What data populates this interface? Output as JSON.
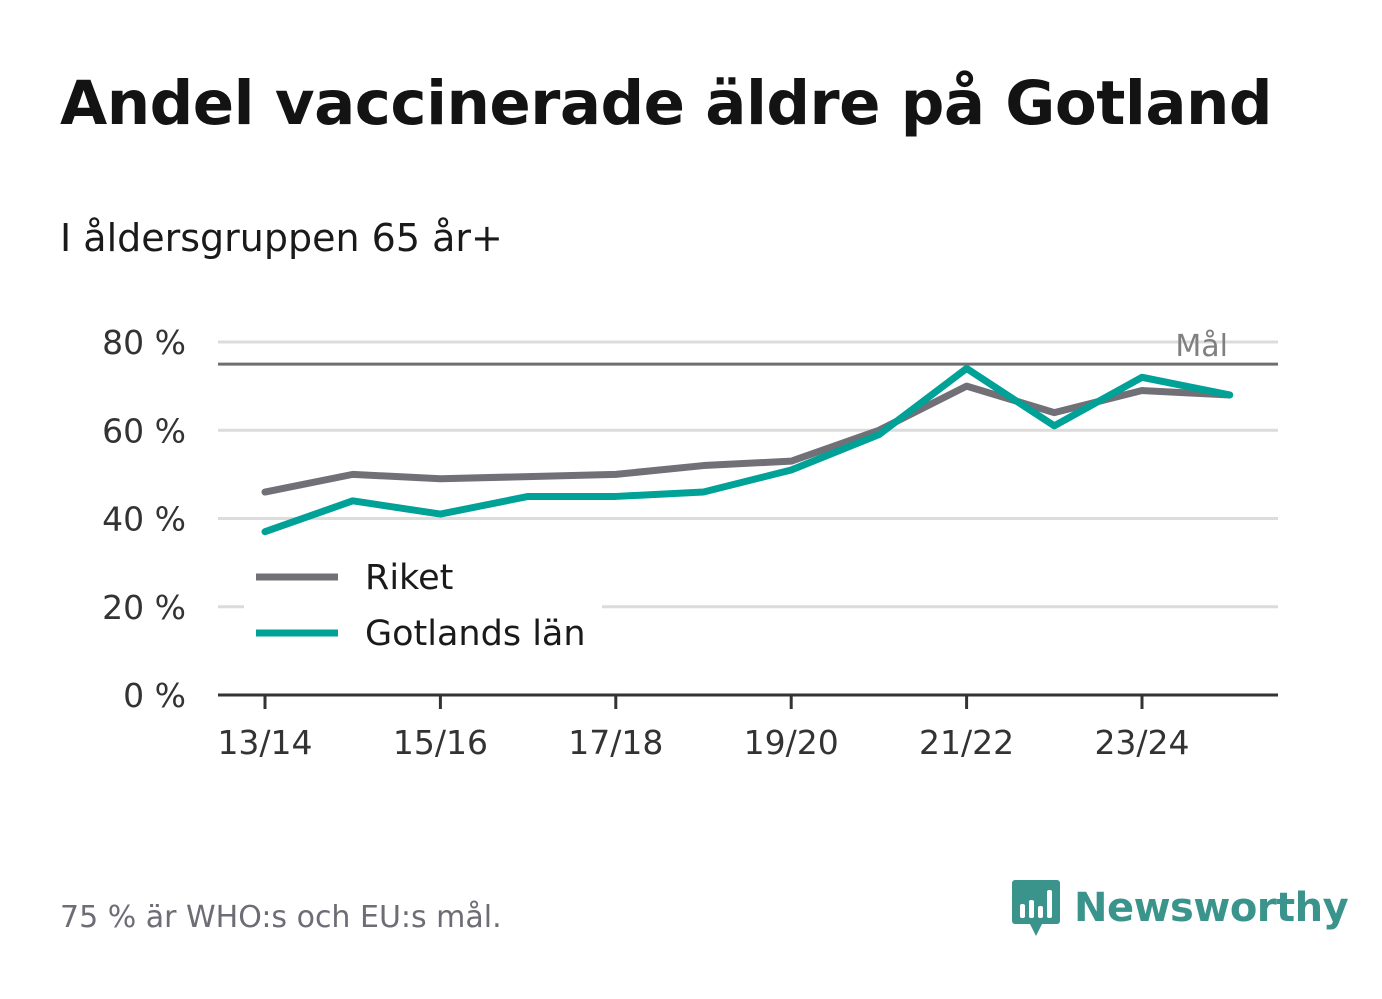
{
  "header": {
    "title": "Andel vaccinerade äldre på Gotland",
    "subtitle": "I åldersgruppen 65 år+"
  },
  "footer": {
    "note": "75 % är WHO:s och EU:s mål.",
    "brand": "Newsworthy"
  },
  "colors": {
    "riket": "#717077",
    "gotland": "#00a197",
    "grid": "#dcdcdc",
    "goal_line": "#6f6f6f",
    "axis": "#333333",
    "brand": "#3a948c"
  },
  "chart_data": {
    "type": "line",
    "title": "Andel vaccinerade äldre på Gotland",
    "subtitle": "I åldersgruppen 65 år+",
    "xlabel": "",
    "ylabel": "",
    "x": [
      "13/14",
      "14/15",
      "15/16",
      "16/17",
      "17/18",
      "18/19",
      "19/20",
      "20/21",
      "21/22",
      "22/23",
      "23/24",
      "24/25"
    ],
    "xtick_labels": [
      "13/14",
      "15/16",
      "17/18",
      "19/20",
      "21/22",
      "23/24"
    ],
    "ylim": [
      0,
      80
    ],
    "yticks": [
      0,
      20,
      40,
      60,
      80
    ],
    "ytick_labels": [
      "0 %",
      "20 %",
      "40 %",
      "60 %",
      "80 %"
    ],
    "grid": true,
    "series": [
      {
        "name": "Riket",
        "values": [
          46,
          50,
          49,
          49.5,
          50,
          52,
          53,
          60,
          70,
          64,
          69,
          68
        ]
      },
      {
        "name": "Gotlands län",
        "values": [
          37,
          44,
          41,
          45,
          45,
          46,
          51,
          59,
          74,
          61,
          72,
          68
        ]
      }
    ],
    "reference_line": {
      "value": 75,
      "label": "Mål"
    },
    "legend": {
      "position": "bottom-left",
      "entries": [
        "Riket",
        "Gotlands län"
      ]
    }
  }
}
